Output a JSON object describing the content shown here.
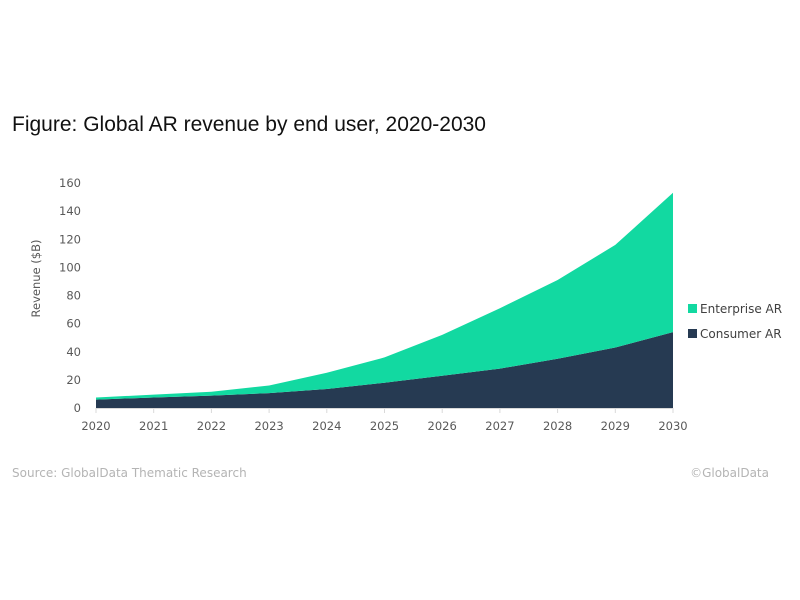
{
  "title": "Figure: Global AR revenue by end user, 2020-2030",
  "footer": {
    "source": "Source: GlobalData Thematic Research",
    "copyright": "©GlobalData"
  },
  "colors": {
    "enterprise": "#12d9a1",
    "consumer": "#263a52",
    "axis": "#d9d9d9"
  },
  "chart_data": {
    "type": "area",
    "stacked": true,
    "title": "Figure: Global AR revenue by end user, 2020-2030",
    "xlabel": "",
    "ylabel": "Revenue ($B)",
    "x": [
      "2020",
      "2021",
      "2022",
      "2023",
      "2024",
      "2025",
      "2026",
      "2027",
      "2028",
      "2029",
      "2030"
    ],
    "ylim": [
      0,
      160
    ],
    "yticks": [
      0,
      20,
      40,
      60,
      80,
      100,
      120,
      140,
      160
    ],
    "grid": false,
    "legend_position": "right",
    "series": [
      {
        "name": "Consumer AR",
        "color": "#263a52",
        "values": [
          6,
          7.5,
          8.8,
          10.6,
          13.5,
          18,
          23,
          28,
          35,
          43,
          54
        ]
      },
      {
        "name": "Enterprise AR",
        "color": "#12d9a1",
        "values": [
          1.5,
          2,
          2.8,
          5.4,
          11.5,
          18,
          29,
          43,
          56,
          73,
          99
        ]
      }
    ],
    "legend": [
      "Enterprise AR",
      "Consumer AR"
    ]
  }
}
